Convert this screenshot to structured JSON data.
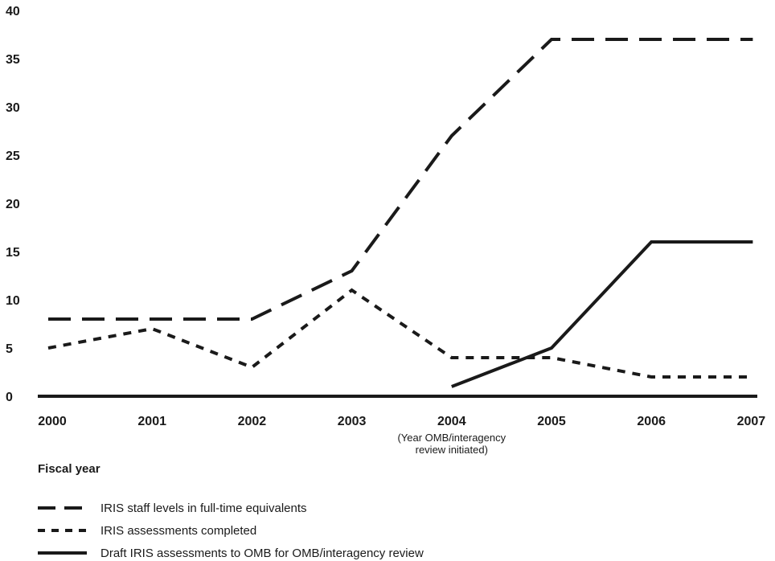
{
  "chart_data": {
    "type": "line",
    "title": "",
    "xlabel": "Fiscal year",
    "ylabel": "",
    "x": [
      "2000",
      "2001",
      "2002",
      "2003",
      "2004",
      "2005",
      "2006",
      "2007"
    ],
    "x_annotation": {
      "category": "2004",
      "lines": [
        "(Year OMB/interagency",
        "review initiated)"
      ]
    },
    "ylim": [
      0,
      40
    ],
    "yticks": [
      0,
      5,
      10,
      15,
      20,
      25,
      30,
      35,
      40
    ],
    "grid": false,
    "legend_position": "bottom-left",
    "series": [
      {
        "name": "IRIS staff levels in full-time equivalents",
        "style": "long-dash",
        "values": [
          8,
          8,
          8,
          13,
          27,
          37,
          37,
          37
        ]
      },
      {
        "name": "IRIS assessments completed",
        "style": "short-dash",
        "values": [
          5,
          7,
          3,
          11,
          4,
          4,
          2,
          2
        ]
      },
      {
        "name": "Draft IRIS assessments to OMB for OMB/interagency review",
        "style": "solid",
        "values": [
          null,
          null,
          null,
          null,
          1,
          5,
          16,
          16
        ]
      }
    ],
    "colors": {
      "line": "#1a1a1a",
      "background": "#ffffff"
    }
  }
}
